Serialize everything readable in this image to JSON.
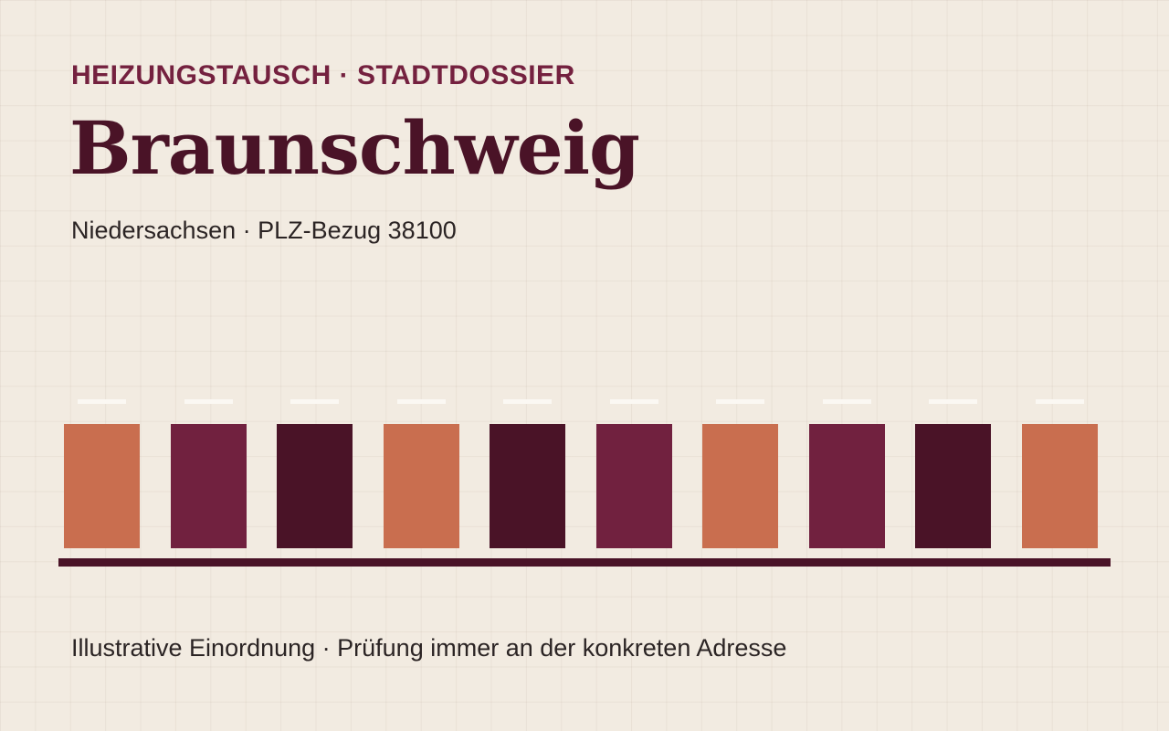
{
  "header": {
    "kicker": "HEIZUNGSTAUSCH · STADTDOSSIER",
    "title": "Braunschweig",
    "subtitle": "Niedersachsen · PLZ-Bezug 38100"
  },
  "skyline": {
    "block_colors": [
      "#c96e4f",
      "#71213f",
      "#4a1327",
      "#c96e4f",
      "#4a1327",
      "#71213f",
      "#c96e4f",
      "#71213f",
      "#4a1327",
      "#c96e4f"
    ]
  },
  "footer": {
    "note": "Illustrative Einordnung · Prüfung immer an der konkreten Adresse"
  },
  "colors": {
    "background": "#f2ebe1",
    "accent": "#74213f",
    "dark": "#4a1327",
    "terracotta": "#c96e4f",
    "text": "#2b2424"
  }
}
